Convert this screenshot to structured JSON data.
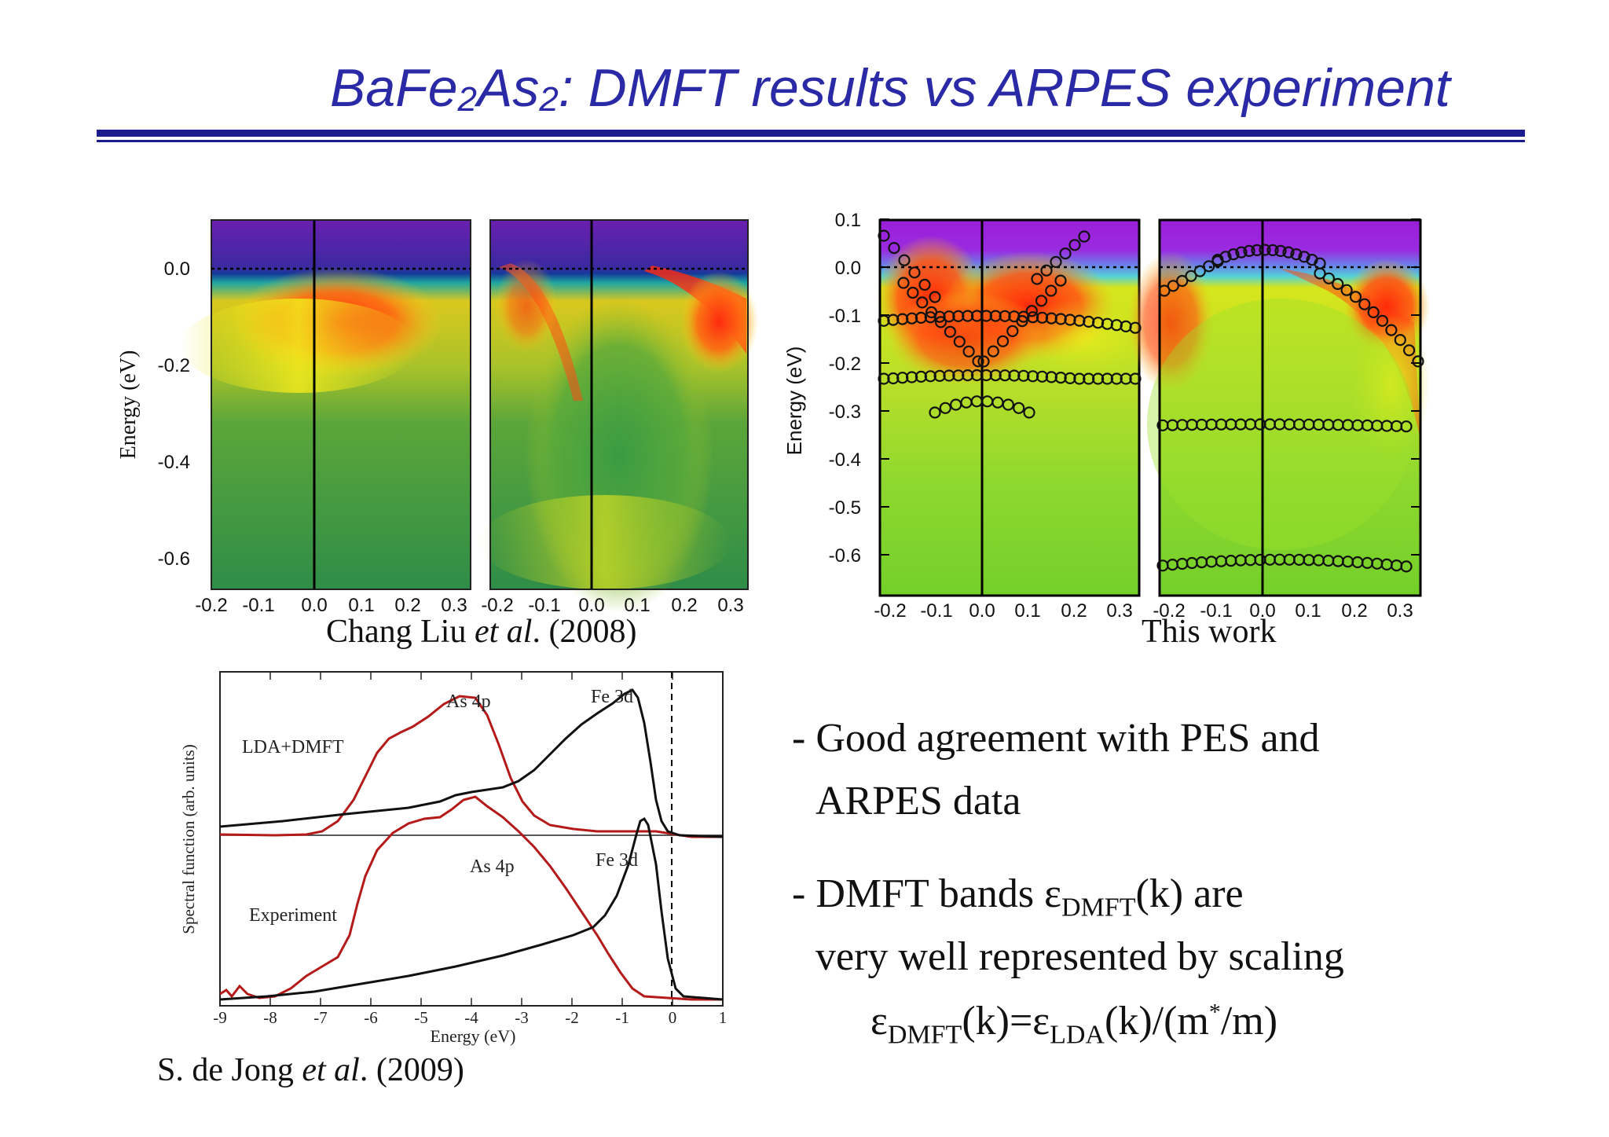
{
  "title": {
    "pre": "BaFe",
    "sub1": "2",
    "mid": "As",
    "sub2": "2",
    "post": ": DMFT results  vs ARPES experiment"
  },
  "colors": {
    "title": "#2a2aa6",
    "rule": "#1c1c8e",
    "lda_curve": "#b51a1a",
    "exp_curve": "#111111"
  },
  "panels": {
    "left": {
      "caption_pre": "Chang Liu ",
      "caption_it": "et al",
      "caption_post": ". (2008)",
      "ylabel": "Energy (eV)",
      "yticks": [
        "0.0",
        "-0.2",
        "-0.4",
        "-0.6"
      ],
      "xticks": [
        "-0.2",
        "-0.1",
        "0.0",
        "0.1",
        "0.2",
        "0.3"
      ]
    },
    "right": {
      "caption": "This work",
      "ylabel": "Energy (eV)",
      "yticks": [
        "0.1",
        "0.0",
        "-0.1",
        "-0.2",
        "-0.3",
        "-0.4",
        "-0.5",
        "-0.6"
      ],
      "xticks": [
        "-0.2",
        "-0.1",
        "0.0",
        "0.1",
        "0.2",
        "0.3"
      ]
    },
    "spectral": {
      "ylabel": "Spectral function (arb. units)",
      "xlabel": "Energy (eV)",
      "xticks": [
        "-9",
        "-8",
        "-7",
        "-6",
        "-5",
        "-4",
        "-3",
        "-2",
        "-1",
        "0",
        "1"
      ],
      "label_top": "LDA+DMFT",
      "label_bottom": "Experiment",
      "as4p": "As 4p",
      "fe3d": "Fe 3d",
      "caption_pre": "S. de Jong ",
      "caption_it": "et al",
      "caption_post": ". (2009)"
    }
  },
  "bullets": {
    "b1_line1": "- Good agreement with PES and",
    "b1_line2": "ARPES data",
    "b2_line1_pre": "- DMFT bands ε",
    "b2_line1_sub": "DMFT",
    "b2_line1_post": "(k) are",
    "b2_line2": "very well represented by scaling",
    "f_e1": "ε",
    "f_s1": "DMFT",
    "f_m1": "(k)=ε",
    "f_s2": "LDA",
    "f_m2": "(k)/(m",
    "f_sup": "*",
    "f_end": "/m)"
  }
}
